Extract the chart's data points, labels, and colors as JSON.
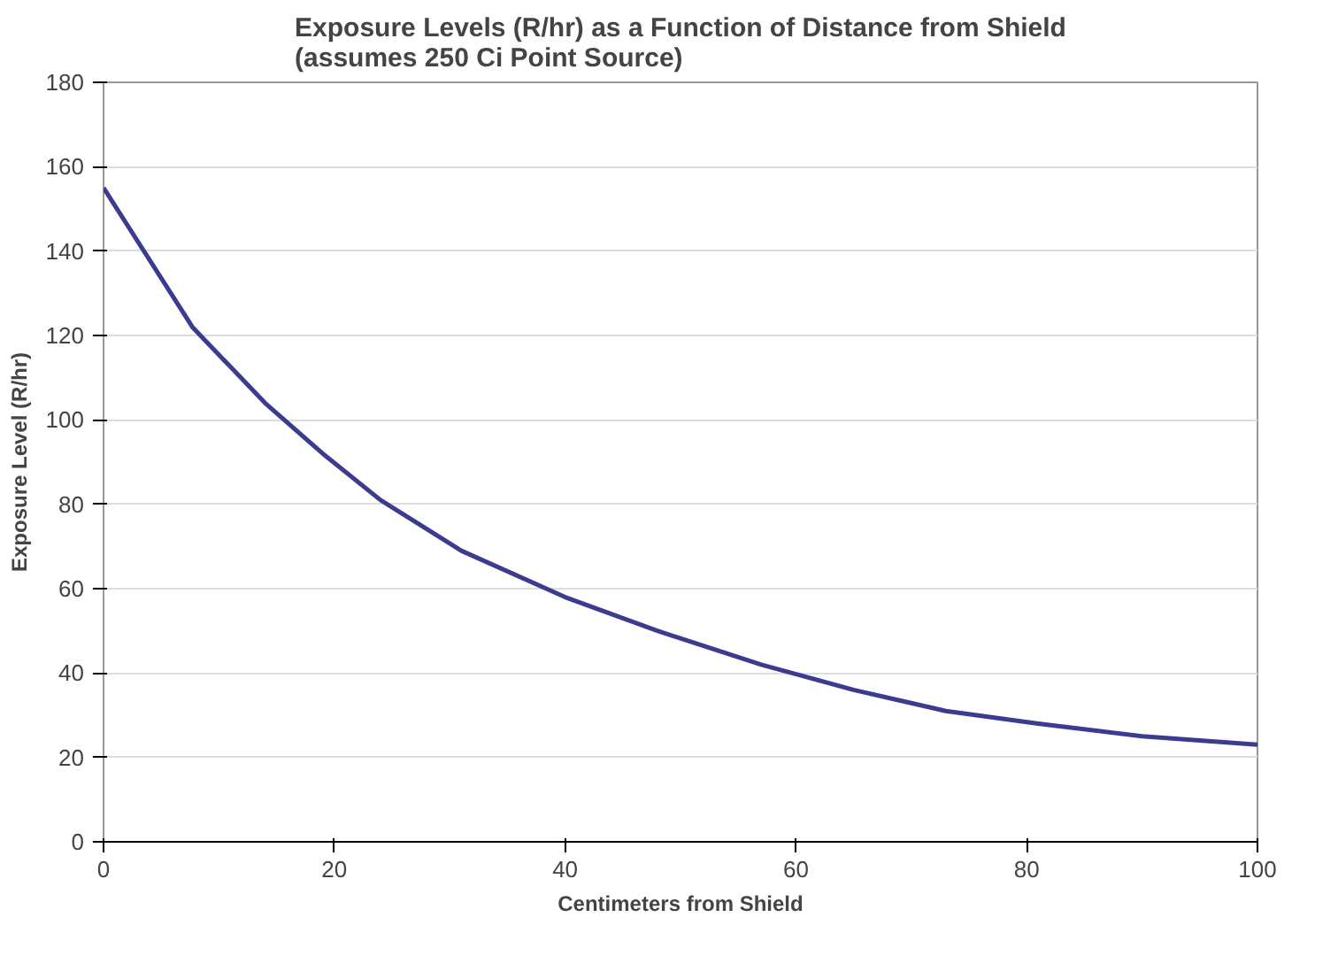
{
  "chart_data": {
    "type": "line",
    "title": "Exposure Levels (R/hr) as a Function of Distance from Shield (assumes 250 Ci Point Source)",
    "xlabel": "Centimeters from Shield",
    "ylabel": "Exposure Level (R/hr)",
    "x": [
      0,
      7.7,
      14,
      19,
      24,
      31,
      40,
      48,
      57,
      65,
      73,
      81,
      90,
      100
    ],
    "series": [
      {
        "color": "#3b3b8f",
        "values": [
          155,
          122,
          104,
          92,
          81,
          69,
          58,
          50,
          42,
          36,
          31,
          28,
          25,
          23
        ]
      }
    ],
    "xlim": [
      0,
      100
    ],
    "xticks": [
      0,
      20,
      40,
      60,
      80,
      100
    ],
    "ylim": [
      0,
      180
    ],
    "yticks": [
      0,
      20,
      40,
      60,
      80,
      100,
      120,
      140,
      160,
      180
    ],
    "grid": "y",
    "marker": "none",
    "line_style": "solid"
  }
}
